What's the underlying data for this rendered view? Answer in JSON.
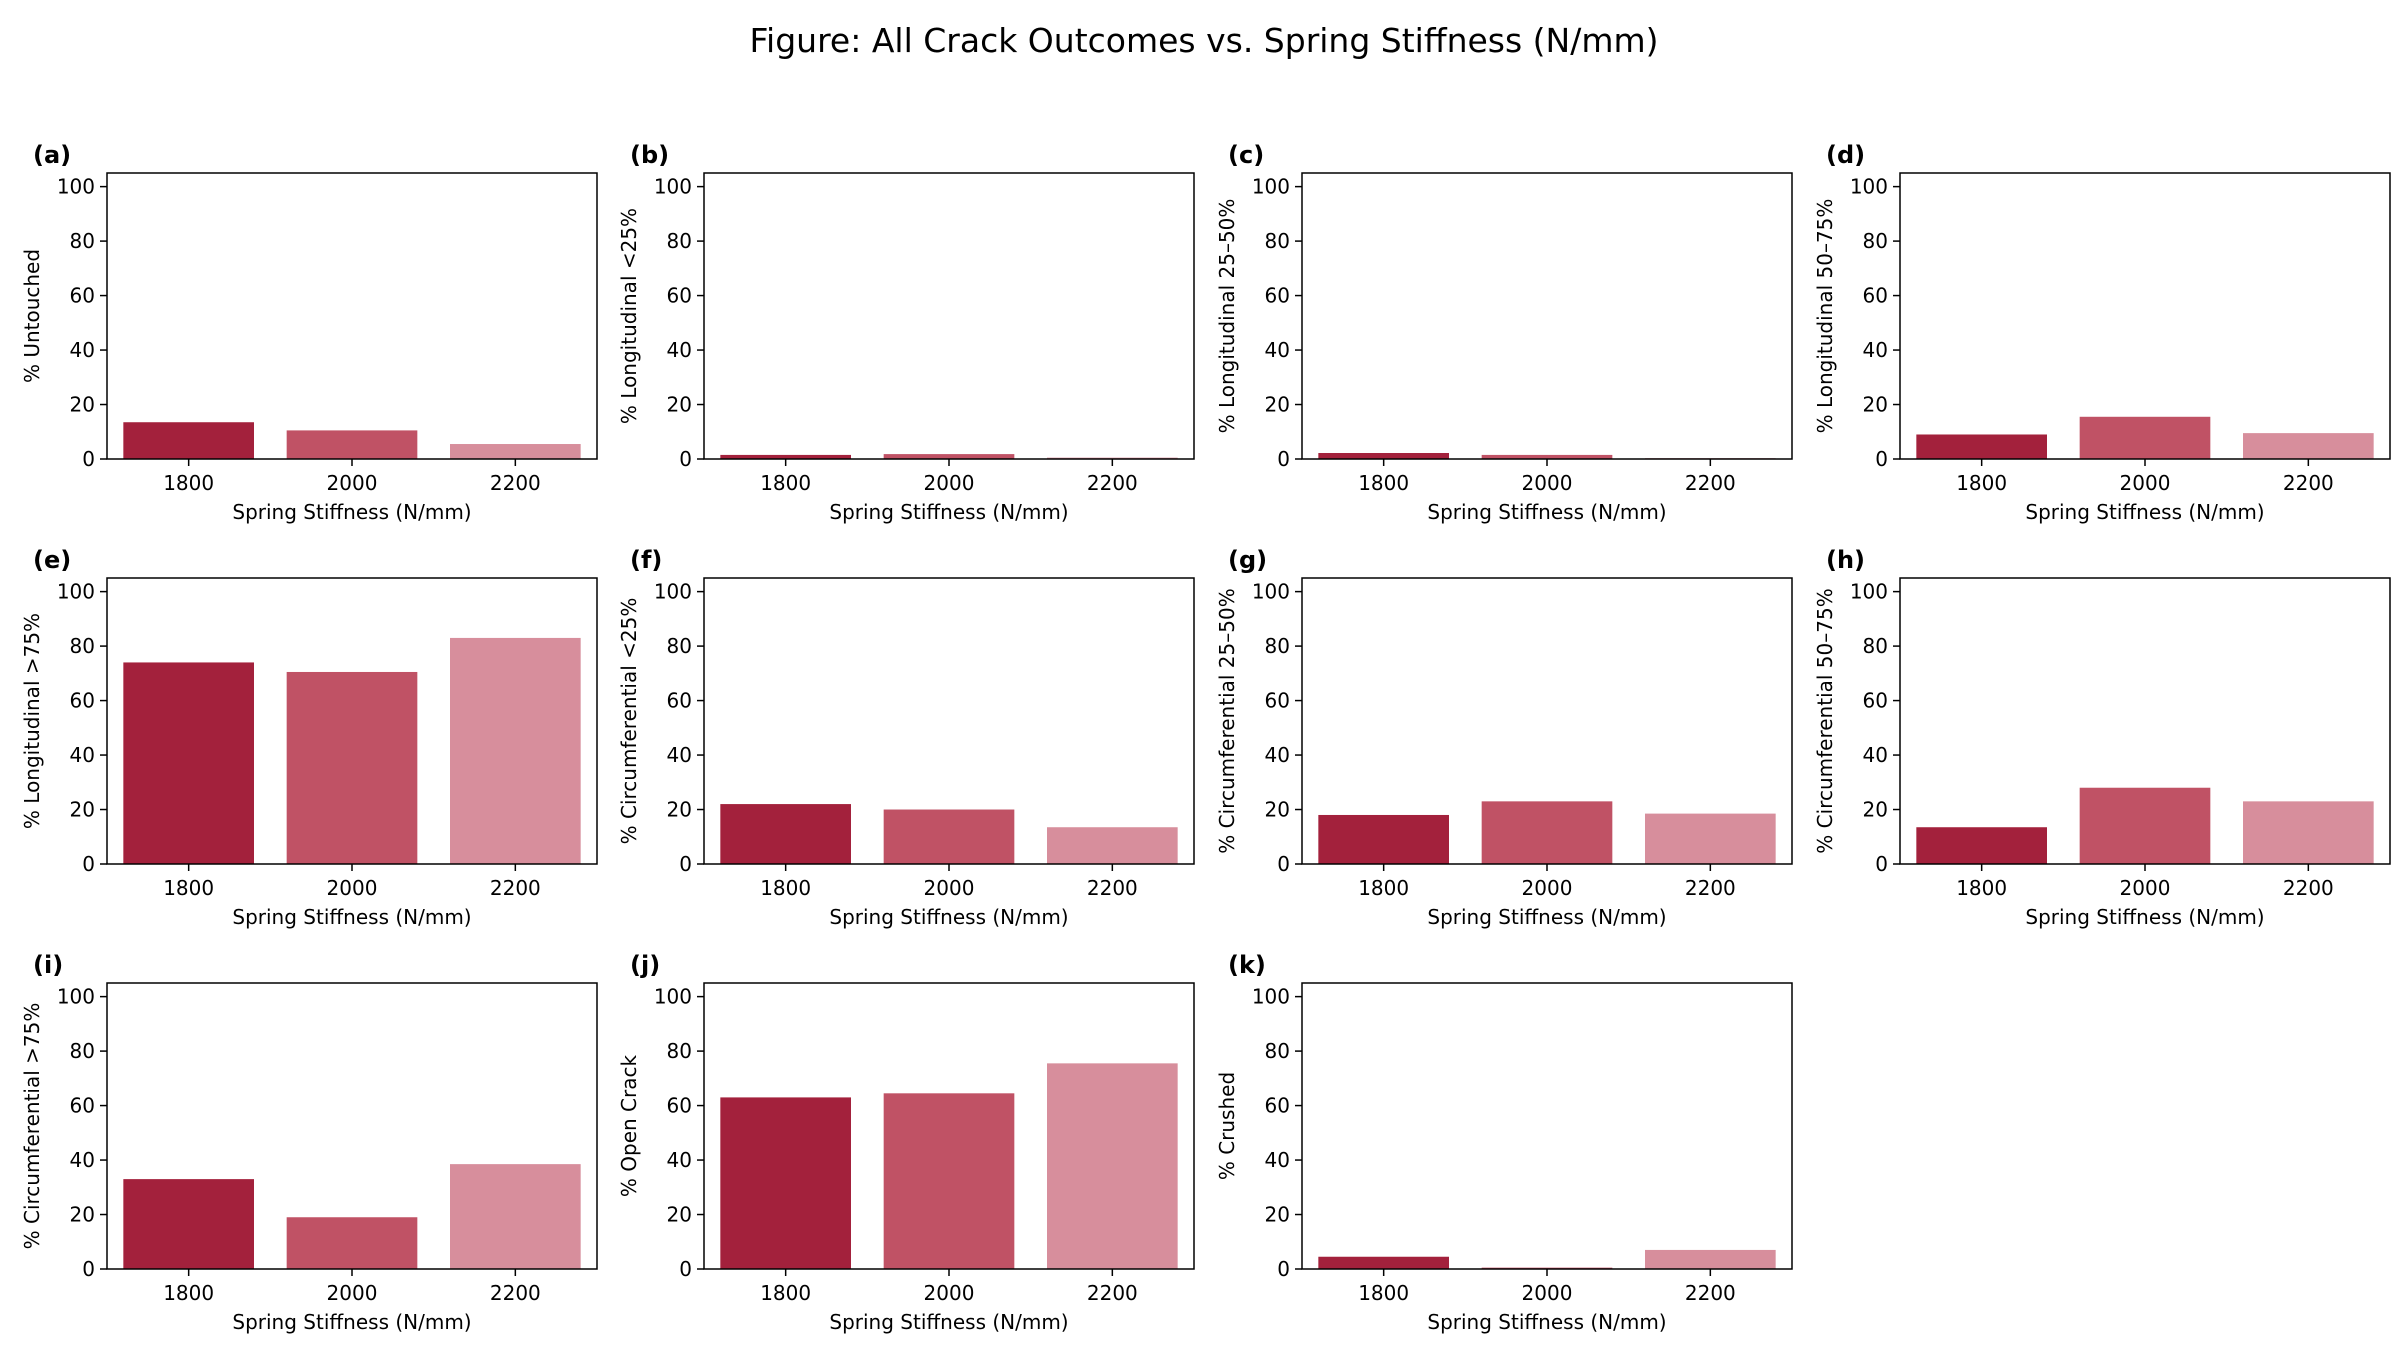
{
  "figure": {
    "title": "Figure: All Crack Outcomes vs. Spring Stiffness (N/mm)"
  },
  "colors": [
    "#a3213c",
    "#c05265",
    "#d78e9c"
  ],
  "chart_data": [
    {
      "type": "bar",
      "panel_label": "(a)",
      "categories": [
        "1800",
        "2000",
        "2200"
      ],
      "values": [
        13.5,
        10.5,
        5.5
      ],
      "xlabel": "Spring Stiffness (N/mm)",
      "ylabel": "% Untouched",
      "ylim": [
        0,
        105
      ],
      "yticks": [
        0,
        20,
        40,
        60,
        80,
        100
      ]
    },
    {
      "type": "bar",
      "panel_label": "(b)",
      "categories": [
        "1800",
        "2000",
        "2200"
      ],
      "values": [
        1.5,
        1.8,
        0.5
      ],
      "xlabel": "Spring Stiffness (N/mm)",
      "ylabel": "% Longitudinal <25%",
      "ylim": [
        0,
        105
      ],
      "yticks": [
        0,
        20,
        40,
        60,
        80,
        100
      ]
    },
    {
      "type": "bar",
      "panel_label": "(c)",
      "categories": [
        "1800",
        "2000",
        "2200"
      ],
      "values": [
        2.2,
        1.5,
        0.3
      ],
      "xlabel": "Spring Stiffness (N/mm)",
      "ylabel": "% Longitudinal 25–50%",
      "ylim": [
        0,
        105
      ],
      "yticks": [
        0,
        20,
        40,
        60,
        80,
        100
      ]
    },
    {
      "type": "bar",
      "panel_label": "(d)",
      "categories": [
        "1800",
        "2000",
        "2200"
      ],
      "values": [
        9.0,
        15.5,
        9.5
      ],
      "xlabel": "Spring Stiffness (N/mm)",
      "ylabel": "% Longitudinal 50–75%",
      "ylim": [
        0,
        105
      ],
      "yticks": [
        0,
        20,
        40,
        60,
        80,
        100
      ]
    },
    {
      "type": "bar",
      "panel_label": "(e)",
      "categories": [
        "1800",
        "2000",
        "2200"
      ],
      "values": [
        74.0,
        70.5,
        83.0
      ],
      "xlabel": "Spring Stiffness (N/mm)",
      "ylabel": "% Longitudinal >75%",
      "ylim": [
        0,
        105
      ],
      "yticks": [
        0,
        20,
        40,
        60,
        80,
        100
      ]
    },
    {
      "type": "bar",
      "panel_label": "(f)",
      "categories": [
        "1800",
        "2000",
        "2200"
      ],
      "values": [
        22.0,
        20.0,
        13.5
      ],
      "xlabel": "Spring Stiffness (N/mm)",
      "ylabel": "% Circumferential <25%",
      "ylim": [
        0,
        105
      ],
      "yticks": [
        0,
        20,
        40,
        60,
        80,
        100
      ]
    },
    {
      "type": "bar",
      "panel_label": "(g)",
      "categories": [
        "1800",
        "2000",
        "2200"
      ],
      "values": [
        18.0,
        23.0,
        18.5
      ],
      "xlabel": "Spring Stiffness (N/mm)",
      "ylabel": "% Circumferential 25–50%",
      "ylim": [
        0,
        105
      ],
      "yticks": [
        0,
        20,
        40,
        60,
        80,
        100
      ]
    },
    {
      "type": "bar",
      "panel_label": "(h)",
      "categories": [
        "1800",
        "2000",
        "2200"
      ],
      "values": [
        13.5,
        28.0,
        23.0
      ],
      "xlabel": "Spring Stiffness (N/mm)",
      "ylabel": "% Circumferential 50–75%",
      "ylim": [
        0,
        105
      ],
      "yticks": [
        0,
        20,
        40,
        60,
        80,
        100
      ]
    },
    {
      "type": "bar",
      "panel_label": "(i)",
      "categories": [
        "1800",
        "2000",
        "2200"
      ],
      "values": [
        33.0,
        19.0,
        38.5
      ],
      "xlabel": "Spring Stiffness (N/mm)",
      "ylabel": "% Circumferential >75%",
      "ylim": [
        0,
        105
      ],
      "yticks": [
        0,
        20,
        40,
        60,
        80,
        100
      ]
    },
    {
      "type": "bar",
      "panel_label": "(j)",
      "categories": [
        "1800",
        "2000",
        "2200"
      ],
      "values": [
        63.0,
        64.5,
        75.5
      ],
      "xlabel": "Spring Stiffness (N/mm)",
      "ylabel": "% Open Crack",
      "ylim": [
        0,
        105
      ],
      "yticks": [
        0,
        20,
        40,
        60,
        80,
        100
      ]
    },
    {
      "type": "bar",
      "panel_label": "(k)",
      "categories": [
        "1800",
        "2000",
        "2200"
      ],
      "values": [
        4.5,
        0.5,
        7.0
      ],
      "xlabel": "Spring Stiffness (N/mm)",
      "ylabel": "% Crushed",
      "ylim": [
        0,
        105
      ],
      "yticks": [
        0,
        20,
        40,
        60,
        80,
        100
      ]
    }
  ]
}
